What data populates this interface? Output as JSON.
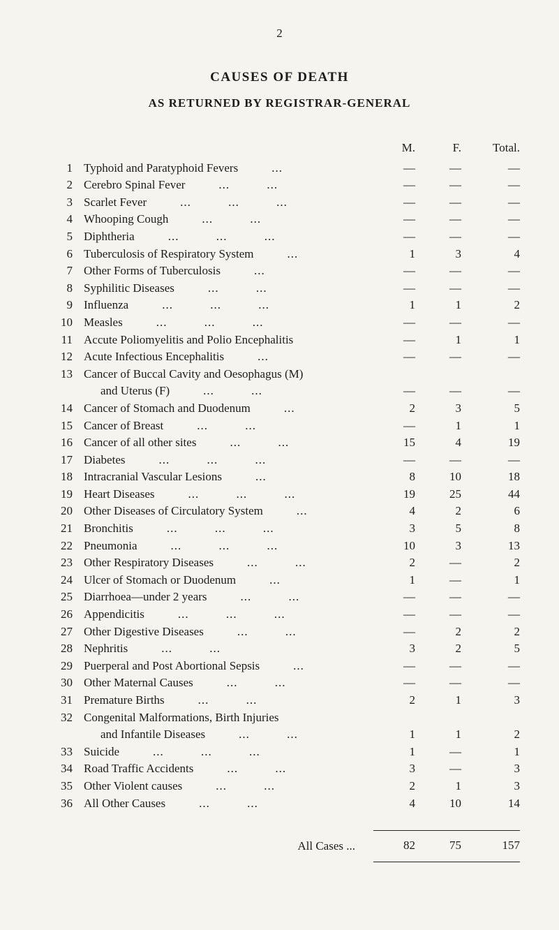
{
  "page": {
    "number": "2",
    "title": "CAUSES OF DEATH",
    "subtitle": "AS RETURNED BY REGISTRAR-GENERAL"
  },
  "table": {
    "headers": {
      "m": "M.",
      "f": "F.",
      "total": "Total."
    },
    "rows": [
      {
        "num": "1",
        "cause": "Typhoid and Paratyphoid Fevers",
        "dots": "...",
        "m": "—",
        "f": "—",
        "total": "—"
      },
      {
        "num": "2",
        "cause": "Cerebro Spinal Fever",
        "dots": "... ...",
        "m": "—",
        "f": "—",
        "total": "—"
      },
      {
        "num": "3",
        "cause": "Scarlet Fever",
        "dots": "... ... ...",
        "m": "—",
        "f": "—",
        "total": "—"
      },
      {
        "num": "4",
        "cause": "Whooping Cough",
        "dots": "... ...",
        "m": "—",
        "f": "—",
        "total": "—"
      },
      {
        "num": "5",
        "cause": "Diphtheria",
        "dots": "... ... ...",
        "m": "—",
        "f": "—",
        "total": "—"
      },
      {
        "num": "6",
        "cause": "Tuberculosis of Respiratory System",
        "dots": "...",
        "m": "1",
        "f": "3",
        "total": "4"
      },
      {
        "num": "7",
        "cause": "Other Forms of Tuberculosis",
        "dots": "...",
        "m": "—",
        "f": "—",
        "total": "—"
      },
      {
        "num": "8",
        "cause": "Syphilitic Diseases",
        "dots": "... ...",
        "m": "—",
        "f": "—",
        "total": "—"
      },
      {
        "num": "9",
        "cause": "Influenza",
        "dots": "... ... ...",
        "m": "1",
        "f": "1",
        "total": "2"
      },
      {
        "num": "10",
        "cause": "Measles",
        "dots": "... ... ...",
        "m": "—",
        "f": "—",
        "total": "—"
      },
      {
        "num": "11",
        "cause": "Accute Poliomyelitis and Polio Encephalitis",
        "dots": "",
        "m": "—",
        "f": "1",
        "total": "1"
      },
      {
        "num": "12",
        "cause": "Acute Infectious Encephalitis",
        "dots": "...",
        "m": "—",
        "f": "—",
        "total": "—"
      },
      {
        "num": "13",
        "cause": "Cancer of Buccal Cavity and Oesophagus (M)",
        "cause2": "and Uterus (F)",
        "dots": "... ...",
        "m": "—",
        "f": "—",
        "total": "—"
      },
      {
        "num": "14",
        "cause": "Cancer of Stomach and Duodenum",
        "dots": "...",
        "m": "2",
        "f": "3",
        "total": "5"
      },
      {
        "num": "15",
        "cause": "Cancer of Breast",
        "dots": "... ...",
        "m": "—",
        "f": "1",
        "total": "1"
      },
      {
        "num": "16",
        "cause": "Cancer of all other sites",
        "dots": "... ...",
        "m": "15",
        "f": "4",
        "total": "19"
      },
      {
        "num": "17",
        "cause": "Diabetes",
        "dots": "... ... ...",
        "m": "—",
        "f": "—",
        "total": "—"
      },
      {
        "num": "18",
        "cause": "Intracranial Vascular Lesions",
        "dots": "...",
        "m": "8",
        "f": "10",
        "total": "18"
      },
      {
        "num": "19",
        "cause": "Heart Diseases",
        "dots": "... ... ...",
        "m": "19",
        "f": "25",
        "total": "44"
      },
      {
        "num": "20",
        "cause": "Other Diseases of Circulatory System",
        "dots": "...",
        "m": "4",
        "f": "2",
        "total": "6"
      },
      {
        "num": "21",
        "cause": "Bronchitis",
        "dots": "... ... ...",
        "m": "3",
        "f": "5",
        "total": "8"
      },
      {
        "num": "22",
        "cause": "Pneumonia",
        "dots": "... ... ...",
        "m": "10",
        "f": "3",
        "total": "13"
      },
      {
        "num": "23",
        "cause": "Other Respiratory Diseases",
        "dots": "... ...",
        "m": "2",
        "f": "—",
        "total": "2"
      },
      {
        "num": "24",
        "cause": "Ulcer of Stomach or Duodenum",
        "dots": "...",
        "m": "1",
        "f": "—",
        "total": "1"
      },
      {
        "num": "25",
        "cause": "Diarrhoea—under 2 years",
        "dots": "... ...",
        "m": "—",
        "f": "—",
        "total": "—"
      },
      {
        "num": "26",
        "cause": "Appendicitis",
        "dots": "... ... ...",
        "m": "—",
        "f": "—",
        "total": "—"
      },
      {
        "num": "27",
        "cause": "Other Digestive Diseases",
        "dots": "... ...",
        "m": "—",
        "f": "2",
        "total": "2"
      },
      {
        "num": "28",
        "cause": "Nephritis",
        "dots": "... ...",
        "m": "3",
        "f": "2",
        "total": "5"
      },
      {
        "num": "29",
        "cause": "Puerperal and Post Abortional Sepsis",
        "dots": "...",
        "m": "—",
        "f": "—",
        "total": "—"
      },
      {
        "num": "30",
        "cause": "Other Maternal Causes",
        "dots": "... ...",
        "m": "—",
        "f": "—",
        "total": "—"
      },
      {
        "num": "31",
        "cause": "Premature Births",
        "dots": "... ...",
        "m": "2",
        "f": "1",
        "total": "3"
      },
      {
        "num": "32",
        "cause": "Congenital Malformations, Birth Injuries",
        "cause2": "and Infantile Diseases",
        "dots": "... ...",
        "m": "1",
        "f": "1",
        "total": "2"
      },
      {
        "num": "33",
        "cause": "Suicide",
        "dots": "... ... ...",
        "m": "1",
        "f": "—",
        "total": "1"
      },
      {
        "num": "34",
        "cause": "Road Traffic Accidents",
        "dots": "... ...",
        "m": "3",
        "f": "—",
        "total": "3"
      },
      {
        "num": "35",
        "cause": "Other Violent causes",
        "dots": "... ...",
        "m": "2",
        "f": "1",
        "total": "3"
      },
      {
        "num": "36",
        "cause": "All Other Causes",
        "dots": "... ...",
        "m": "4",
        "f": "10",
        "total": "14"
      }
    ],
    "footer": {
      "label": "All Cases ...",
      "m": "82",
      "f": "75",
      "total": "157"
    }
  }
}
